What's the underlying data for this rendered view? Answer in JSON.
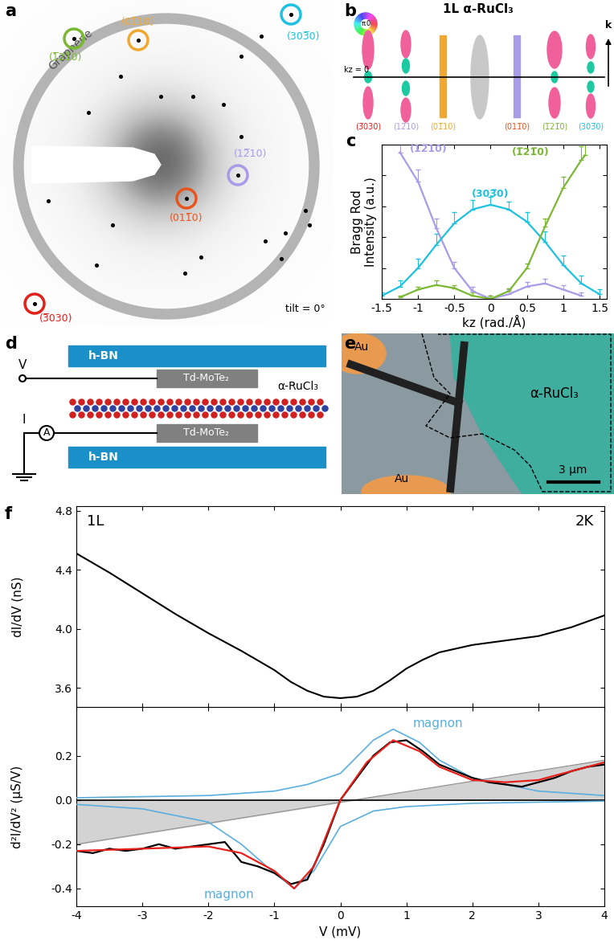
{
  "panel_labels": [
    "a",
    "b",
    "c",
    "d",
    "e",
    "f"
  ],
  "a": {
    "ring_label": "Graphene",
    "tilt": "tilt = 0°",
    "spots": [
      {
        "label": "(303̅0)",
        "color": "#1fc1e0"
      },
      {
        "label": "(01̅10)",
        "color": "#f0a830"
      },
      {
        "label": "(1̅21̅0)",
        "color": "#7bb832"
      },
      {
        "label": "(12̅10)",
        "color": "#a99be8"
      },
      {
        "label": "(011̅0)",
        "color": "#e8541e"
      },
      {
        "label": "(3̅030)",
        "color": "#e0201a"
      }
    ]
  },
  "b": {
    "title": "1L α-RuCl₃",
    "kz_label": "kz = 0",
    "k_label": "k",
    "wheel_labels": [
      "π",
      "0"
    ],
    "rod_labels": [
      {
        "label": "(3̅030)",
        "color": "#e0201a"
      },
      {
        "label": "(12̅10)",
        "color": "#a99be8"
      },
      {
        "label": "(01̅10)",
        "color": "#f0a830"
      },
      {
        "label": "(011̅0)",
        "color": "#e8541e"
      },
      {
        "label": "(1̅21̅0)",
        "color": "#7bb832"
      },
      {
        "label": "(303̅0)",
        "color": "#1fc1e0"
      }
    ]
  },
  "d": {
    "layers": [
      "h-BN",
      "Td-MoTe₂",
      "α-RuCl₃",
      "Td-MoTe₂",
      "h-BN"
    ],
    "voltage": "V",
    "current": "I",
    "ammeter": "A"
  },
  "e": {
    "labels": [
      "Au",
      "Au",
      "α-RuCl₃"
    ],
    "scale_bar": "3 μm"
  },
  "chart_data": [
    {
      "type": "line",
      "x_label": "kz (rad./Å)",
      "y_label": "Bragg Rod\nIntensity (a.u.)",
      "xlim": [
        -1.5,
        1.6
      ],
      "xticks": [
        -1.5,
        -1,
        -0.5,
        0,
        0.5,
        1,
        1.5
      ],
      "ylim": [
        0,
        1
      ],
      "yticks": [
        0,
        0.2,
        0.4,
        0.6,
        0.8,
        1
      ],
      "tick_labels": "x",
      "series": [
        {
          "name": "(12̅10)",
          "color": "#a99be8",
          "x": [
            -1.25,
            -1.0,
            -0.75,
            -0.5,
            -0.25,
            0,
            0.25,
            0.5,
            0.75,
            1.0,
            1.25
          ],
          "values": [
            0.95,
            0.76,
            0.46,
            0.2,
            0.05,
            0.0,
            0.03,
            0.08,
            0.1,
            0.06,
            0.02
          ],
          "errors": [
            0.12,
            0.08,
            0.06,
            0.04,
            0.03,
            0.02,
            0.03,
            0.03,
            0.03,
            0.03,
            0.02
          ]
        },
        {
          "name": "(303̅0)",
          "color": "#1fc1e0",
          "x": [
            -1.5,
            -1.25,
            -1.0,
            -0.75,
            -0.5,
            -0.25,
            0,
            0.25,
            0.5,
            0.75,
            1.0,
            1.25,
            1.5
          ],
          "values": [
            0.02,
            0.08,
            0.2,
            0.35,
            0.49,
            0.58,
            0.61,
            0.58,
            0.5,
            0.37,
            0.22,
            0.1,
            0.03
          ],
          "errors": [
            0.02,
            0.04,
            0.06,
            0.07,
            0.07,
            0.06,
            0.05,
            0.05,
            0.06,
            0.07,
            0.06,
            0.05,
            0.03
          ]
        },
        {
          "name": "(1̅21̅0)",
          "color": "#7bb832",
          "x": [
            -1.25,
            -1.0,
            -0.75,
            -0.5,
            -0.25,
            0,
            0.25,
            0.5,
            0.75,
            1.0,
            1.25,
            1.3
          ],
          "values": [
            0.01,
            0.06,
            0.09,
            0.07,
            0.02,
            0.0,
            0.05,
            0.2,
            0.47,
            0.72,
            0.9,
            0.93
          ],
          "errors": [
            0.01,
            0.02,
            0.03,
            0.02,
            0.02,
            0.02,
            0.02,
            0.03,
            0.05,
            0.07,
            0.09,
            0.1
          ]
        }
      ]
    },
    {
      "type": "line",
      "y_label": "dI/dV (nS)",
      "annotations": [
        "1L",
        "2K"
      ],
      "xlim": [
        -4,
        4
      ],
      "xticks": [
        -4,
        -3,
        -2,
        -1,
        0,
        1,
        2,
        3,
        4
      ],
      "ylim": [
        3.47,
        4.83
      ],
      "yticks": [
        3.6,
        4.0,
        4.4,
        4.8
      ],
      "tick_labels": "y",
      "series": [
        {
          "color": "#000000",
          "x": [
            -4,
            -3.5,
            -3,
            -2.5,
            -2,
            -1.5,
            -1,
            -0.75,
            -0.5,
            -0.25,
            0,
            0.25,
            0.5,
            0.75,
            1,
            1.25,
            1.5,
            2,
            2.5,
            3,
            3.5,
            4
          ],
          "values": [
            4.51,
            4.38,
            4.24,
            4.1,
            3.97,
            3.85,
            3.72,
            3.64,
            3.58,
            3.54,
            3.53,
            3.54,
            3.58,
            3.65,
            3.73,
            3.79,
            3.84,
            3.89,
            3.92,
            3.95,
            4.01,
            4.09
          ]
        }
      ]
    },
    {
      "type": "line",
      "x_label": "V (mV)",
      "y_label": "d²I/dV² (μS/V)",
      "xlim": [
        -4,
        4
      ],
      "xticks": [
        -4,
        -3,
        -2,
        -1,
        0,
        1,
        2,
        3,
        4
      ],
      "ylim": [
        -0.48,
        0.42
      ],
      "yticks": [
        -0.4,
        -0.2,
        0.0,
        0.2
      ],
      "series": [
        {
          "type": "area",
          "color": "#c8c8c8",
          "x": [
            -4,
            4
          ],
          "values": [
            -0.2,
            0.18
          ]
        },
        {
          "type": "hline",
          "color": "#000000",
          "values": [
            0.0
          ]
        },
        {
          "name": "magnon",
          "color": "#5aaee0",
          "x": [
            -4,
            -3,
            -2,
            -1,
            -0.5,
            0,
            0.5,
            0.8,
            1.2,
            1.5,
            2,
            3,
            4
          ],
          "values": [
            0.01,
            0.015,
            0.02,
            0.04,
            0.07,
            0.12,
            0.27,
            0.32,
            0.26,
            0.18,
            0.1,
            0.04,
            0.02
          ]
        },
        {
          "name": "magnon",
          "color": "#5aaee0",
          "x": [
            -4,
            -3,
            -2,
            -1.5,
            -1,
            -0.7,
            -0.4,
            0,
            0.5,
            1,
            2,
            3,
            4
          ],
          "values": [
            -0.02,
            -0.04,
            -0.1,
            -0.2,
            -0.33,
            -0.4,
            -0.32,
            -0.12,
            -0.05,
            -0.03,
            -0.015,
            -0.01,
            -0.005
          ]
        },
        {
          "color": "#000000",
          "x": [
            -4,
            -3.75,
            -3.5,
            -3.25,
            -3,
            -2.75,
            -2.5,
            -2.25,
            -2,
            -1.75,
            -1.5,
            -1.25,
            -1,
            -0.75,
            -0.5,
            -0.25,
            0,
            0.25,
            0.5,
            0.75,
            1,
            1.25,
            1.5,
            1.75,
            2,
            2.25,
            2.5,
            2.75,
            3,
            3.25,
            3.5,
            3.75,
            4
          ],
          "values": [
            -0.23,
            -0.24,
            -0.22,
            -0.23,
            -0.22,
            -0.2,
            -0.22,
            -0.21,
            -0.2,
            -0.19,
            -0.28,
            -0.3,
            -0.33,
            -0.38,
            -0.36,
            -0.2,
            0.0,
            0.1,
            0.2,
            0.26,
            0.27,
            0.22,
            0.16,
            0.13,
            0.1,
            0.08,
            0.07,
            0.06,
            0.08,
            0.1,
            0.13,
            0.15,
            0.16
          ]
        },
        {
          "color": "#e8201a",
          "x": [
            -4,
            -3,
            -2,
            -1.5,
            -1,
            -0.7,
            -0.4,
            0,
            0.4,
            0.8,
            1.2,
            1.5,
            2,
            2.5,
            3,
            3.5,
            4
          ],
          "values": [
            -0.23,
            -0.22,
            -0.21,
            -0.24,
            -0.32,
            -0.4,
            -0.3,
            0.0,
            0.17,
            0.27,
            0.22,
            0.15,
            0.09,
            0.08,
            0.09,
            0.13,
            0.17
          ]
        }
      ]
    }
  ]
}
